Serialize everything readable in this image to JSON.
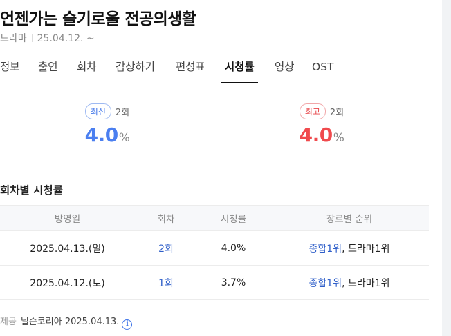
{
  "title": "언젠가는 슬기로울 전공의생활",
  "subline": {
    "genre": "드라마",
    "date": "25.04.12. ~"
  },
  "tabs": [
    {
      "label": "정보"
    },
    {
      "label": "출연"
    },
    {
      "label": "회차"
    },
    {
      "label": "감상하기"
    },
    {
      "label": "편성표"
    },
    {
      "label": "시청률"
    },
    {
      "label": "영상"
    },
    {
      "label": "OST"
    }
  ],
  "active_tab": "시청률",
  "latest": {
    "badge": "최신",
    "episode": "2회",
    "value": "4.0",
    "unit": "%"
  },
  "highest": {
    "badge": "최고",
    "episode": "2회",
    "value": "4.0",
    "unit": "%"
  },
  "section_title": "회차별 시청률",
  "table": {
    "headers": [
      "방영일",
      "회차",
      "시청률",
      "장르별 순위"
    ],
    "rows": [
      {
        "date": "2025.04.13.(일)",
        "episode": "2회",
        "rating": "4.0%",
        "rank_overall": "종합1위",
        "rank_sep": ",",
        "rank_genre": "드라마1위"
      },
      {
        "date": "2025.04.12.(토)",
        "episode": "1회",
        "rating": "3.7%",
        "rank_overall": "종합1위",
        "rank_sep": ",",
        "rank_genre": "드라마1위"
      }
    ]
  },
  "footer": {
    "label": "제공",
    "source": "닐슨코리아 2025.04.13."
  },
  "colors": {
    "latest": "#4b7ff0",
    "highest": "#f04a4d",
    "link": "#2e5ec9"
  },
  "icons": {
    "info": "info-circle-icon"
  }
}
